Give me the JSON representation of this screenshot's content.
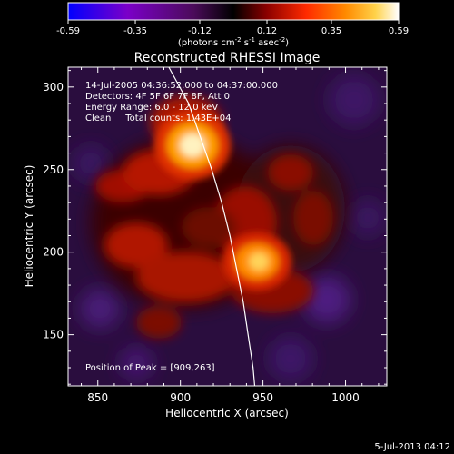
{
  "colorbar": {
    "ticks": [
      "-0.59",
      "-0.35",
      "-0.12",
      "0.12",
      "0.35",
      "0.59"
    ],
    "units_base": "(photons cm",
    "units_exp1": "-2",
    "units_mid": " s",
    "units_exp2": "-1",
    "units_end": " asec",
    "units_exp3": "-2",
    "units_close": ")"
  },
  "chart_data": {
    "type": "heatmap",
    "title": "Reconstructed RHESSI Image",
    "xlabel": "Heliocentric X (arcsec)",
    "ylabel": "Heliocentric Y (arcsec)",
    "xlim": [
      832,
      1025
    ],
    "ylim": [
      119,
      312
    ],
    "x_ticks": [
      850,
      900,
      950,
      1000
    ],
    "y_ticks": [
      150,
      200,
      250,
      300
    ],
    "value_range": [
      -0.59,
      0.59
    ],
    "colormap": [
      "#0000ff",
      "#7b00c8",
      "#4b0b5a",
      "#000000",
      "#8a0000",
      "#ff2a00",
      "#ff8a00",
      "#ffd24a",
      "#ffffff"
    ],
    "sources": [
      {
        "x": 909,
        "y": 263,
        "value": 0.59
      },
      {
        "x": 945,
        "y": 195,
        "value": 0.42
      }
    ],
    "limb_curve": [
      [
        893,
        312
      ],
      [
        905,
        290
      ],
      [
        912,
        270
      ],
      [
        919,
        250
      ],
      [
        925,
        230
      ],
      [
        930,
        210
      ],
      [
        934,
        190
      ],
      [
        938,
        170
      ],
      [
        941,
        150
      ],
      [
        944,
        130
      ],
      [
        945,
        119
      ]
    ],
    "annotations": {
      "time_range": "14-Jul-2005 04:36:52.000 to 04:37:00.000",
      "detectors": "Detectors: 4F 5F 6F 7F 8F, Att 0",
      "energy": "Energy Range: 6.0 - 12.0 keV",
      "clean": "Clean     Total counts: 1.43E+04",
      "peak": "Position of Peak = [909,263]"
    }
  },
  "footer": {
    "timestamp": "5-Jul-2013 04:12"
  }
}
